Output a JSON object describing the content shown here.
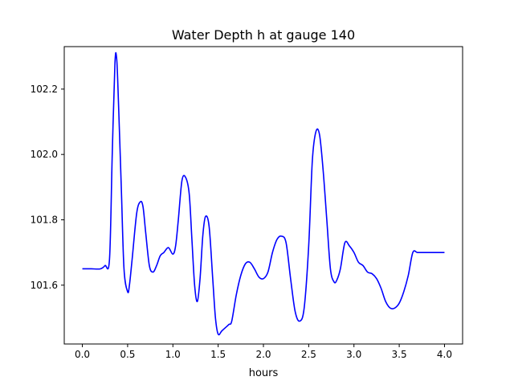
{
  "chart_data": {
    "type": "line",
    "title": "Water Depth h at gauge 140",
    "xlabel": "hours",
    "ylabel": "",
    "xlim": [
      -0.2,
      4.2
    ],
    "ylim": [
      101.42,
      102.33
    ],
    "xticks": [
      0.0,
      0.5,
      1.0,
      1.5,
      2.0,
      2.5,
      3.0,
      3.5,
      4.0
    ],
    "xtick_labels": [
      "0.0",
      "0.5",
      "1.0",
      "1.5",
      "2.0",
      "2.5",
      "3.0",
      "3.5",
      "4.0"
    ],
    "yticks": [
      101.6,
      101.8,
      102.0,
      102.2
    ],
    "ytick_labels": [
      "101.6",
      "101.8",
      "102.0",
      "102.2"
    ],
    "grid": false,
    "legend": "none",
    "series": [
      {
        "color": "#0000ff",
        "x": [
          0.0,
          0.1,
          0.2,
          0.25,
          0.3,
          0.33,
          0.36,
          0.38,
          0.4,
          0.43,
          0.46,
          0.5,
          0.52,
          0.55,
          0.6,
          0.64,
          0.67,
          0.7,
          0.74,
          0.78,
          0.82,
          0.86,
          0.9,
          0.95,
          1.0,
          1.03,
          1.06,
          1.1,
          1.14,
          1.18,
          1.21,
          1.24,
          1.27,
          1.3,
          1.33,
          1.36,
          1.4,
          1.44,
          1.47,
          1.5,
          1.54,
          1.58,
          1.62,
          1.65,
          1.7,
          1.75,
          1.8,
          1.85,
          1.9,
          1.95,
          2.0,
          2.05,
          2.1,
          2.15,
          2.2,
          2.25,
          2.3,
          2.35,
          2.4,
          2.45,
          2.5,
          2.54,
          2.58,
          2.62,
          2.66,
          2.7,
          2.74,
          2.78,
          2.81,
          2.85,
          2.9,
          2.95,
          3.0,
          3.05,
          3.1,
          3.15,
          3.2,
          3.25,
          3.3,
          3.35,
          3.4,
          3.45,
          3.5,
          3.55,
          3.6,
          3.65,
          3.7,
          3.75,
          3.8,
          3.85,
          3.9,
          3.95,
          4.0
        ],
        "y": [
          101.65,
          101.65,
          101.65,
          101.66,
          101.68,
          102.0,
          102.28,
          102.29,
          102.15,
          101.9,
          101.65,
          101.58,
          101.6,
          101.68,
          101.82,
          101.855,
          101.84,
          101.76,
          101.66,
          101.64,
          101.66,
          101.69,
          101.7,
          101.715,
          101.695,
          101.72,
          101.8,
          101.92,
          101.93,
          101.88,
          101.74,
          101.6,
          101.55,
          101.62,
          101.75,
          101.81,
          101.78,
          101.62,
          101.5,
          101.45,
          101.46,
          101.47,
          101.48,
          101.49,
          101.57,
          101.63,
          101.665,
          101.67,
          101.65,
          101.625,
          101.62,
          101.64,
          101.7,
          101.74,
          101.75,
          101.73,
          101.62,
          101.52,
          101.49,
          101.53,
          101.72,
          101.98,
          102.07,
          102.06,
          101.95,
          101.8,
          101.65,
          101.61,
          101.615,
          101.65,
          101.73,
          101.72,
          101.7,
          101.67,
          101.66,
          101.64,
          101.635,
          101.62,
          101.59,
          101.55,
          101.53,
          101.53,
          101.545,
          101.58,
          101.63,
          101.7,
          101.7,
          101.7,
          101.7,
          101.7,
          101.7,
          101.7,
          101.7
        ]
      }
    ]
  }
}
